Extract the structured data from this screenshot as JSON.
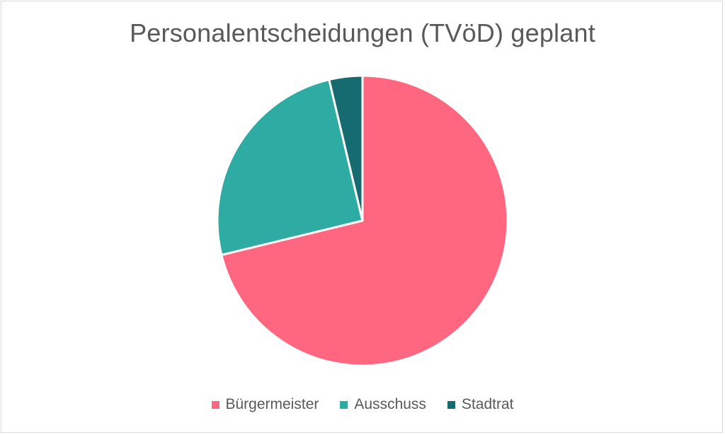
{
  "chart_data": {
    "type": "pie",
    "title": "Personalentscheidungen (TVöD) geplant",
    "legend_position": "bottom",
    "categories": [
      "Bürgermeister",
      "Ausschuss",
      "Stadtrat"
    ],
    "values": [
      71.2,
      25.1,
      3.7
    ],
    "colors": [
      "#ff6680",
      "#2eaca3",
      "#156b70"
    ],
    "start_angle_deg": 0,
    "direction": "clockwise"
  }
}
